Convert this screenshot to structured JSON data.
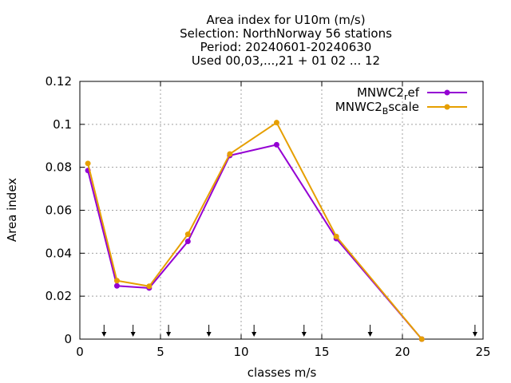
{
  "chart_data": {
    "type": "line",
    "title_lines": [
      "Area index  for U10m (m/s)",
      "Selection: NorthNorway      56 stations",
      "Period: 20240601-20240630",
      "Used 00,03,...,21 + 01 02 ... 12"
    ],
    "xlabel": "classes m/s",
    "ylabel": "Area index",
    "xlim": [
      0,
      25
    ],
    "ylim": [
      0,
      0.12
    ],
    "xticks": [
      0,
      5,
      10,
      15,
      20,
      25
    ],
    "xtick_labels": [
      "0",
      "5",
      "10",
      "15",
      "20",
      "25"
    ],
    "yticks": [
      0,
      0.02,
      0.04,
      0.06,
      0.08,
      0.1,
      0.12
    ],
    "ytick_labels": [
      "0",
      "0.02",
      "0.04",
      "0.06",
      "0.08",
      "0.1",
      "0.12"
    ],
    "grid": true,
    "legend_position": "top-right",
    "class_marker_arrows_x": [
      1.5,
      3.3,
      5.5,
      8,
      10.8,
      13.9,
      18,
      24.5
    ],
    "series": [
      {
        "name": "MNWC2_ref",
        "legend_main": "MNWC2",
        "legend_sub": "r",
        "legend_tail": "ef",
        "color": "#9400d3",
        "x": [
          0.5,
          2.3,
          4.3,
          6.7,
          9.3,
          12.2,
          15.9,
          21.2
        ],
        "y": [
          0.0785,
          0.0248,
          0.0238,
          0.0455,
          0.0855,
          0.0905,
          0.0468,
          0.0
        ]
      },
      {
        "name": "MNWC2_Bscale",
        "legend_main": "MNWC2",
        "legend_sub": "B",
        "legend_tail": "scale",
        "color": "#e69f00",
        "x": [
          0.5,
          2.3,
          4.3,
          6.7,
          9.3,
          12.2,
          15.9,
          21.2
        ],
        "y": [
          0.0818,
          0.0272,
          0.0246,
          0.0488,
          0.0862,
          0.1008,
          0.0478,
          0.0
        ]
      }
    ]
  }
}
